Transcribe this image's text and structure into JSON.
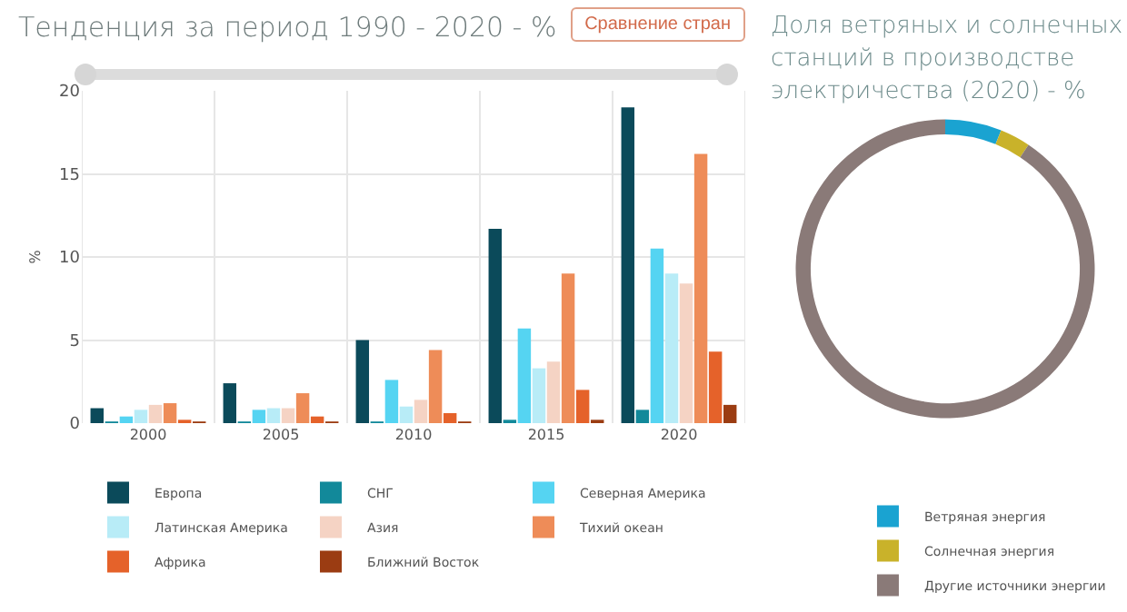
{
  "chart_data": [
    {
      "type": "bar",
      "title": "Тенденция за период 1990 - 2020 - %",
      "ylabel": "%",
      "annotations": [
        "Сравнение стран"
      ],
      "categories": [
        "2000",
        "2005",
        "2010",
        "2015",
        "2020"
      ],
      "series": [
        {
          "name": "Европа",
          "color": "#0b4a5a",
          "values": [
            0.9,
            2.4,
            5.0,
            11.7,
            19.0
          ]
        },
        {
          "name": "СНГ",
          "color": "#12899a",
          "values": [
            0.1,
            0.1,
            0.1,
            0.2,
            0.8
          ]
        },
        {
          "name": "Северная Америка",
          "color": "#55d4f2",
          "values": [
            0.4,
            0.8,
            2.6,
            5.7,
            10.5
          ]
        },
        {
          "name": "Латинская Америка",
          "color": "#b8ecf7",
          "values": [
            0.8,
            0.9,
            1.0,
            3.3,
            9.0
          ]
        },
        {
          "name": "Азия",
          "color": "#f5d3c4",
          "values": [
            1.1,
            0.9,
            1.4,
            3.7,
            8.4
          ]
        },
        {
          "name": "Тихий океан",
          "color": "#ee8c58",
          "values": [
            1.2,
            1.8,
            4.4,
            9.0,
            16.2
          ]
        },
        {
          "name": "Африка",
          "color": "#e5622a",
          "values": [
            0.2,
            0.4,
            0.6,
            2.0,
            4.3
          ]
        },
        {
          "name": "Ближний Восток",
          "color": "#9b3c12",
          "values": [
            0.1,
            0.1,
            0.1,
            0.2,
            1.1
          ]
        }
      ],
      "ylim": [
        0,
        20
      ],
      "yticks": [
        0,
        5,
        10,
        15,
        20
      ],
      "grid": true,
      "legend": "bottom"
    },
    {
      "type": "donut",
      "title": "Доля ветряных и солнечных станций в производстве электричества (2020) - %",
      "categories": [
        "Ветряная энергия",
        "Солнечная энергия",
        "Другие источники энергии"
      ],
      "values": [
        6.1,
        3.3,
        90.6
      ],
      "colors": [
        "#1aa3d1",
        "#c9b22a",
        "#8a7a78"
      ],
      "legend": "bottom"
    }
  ]
}
